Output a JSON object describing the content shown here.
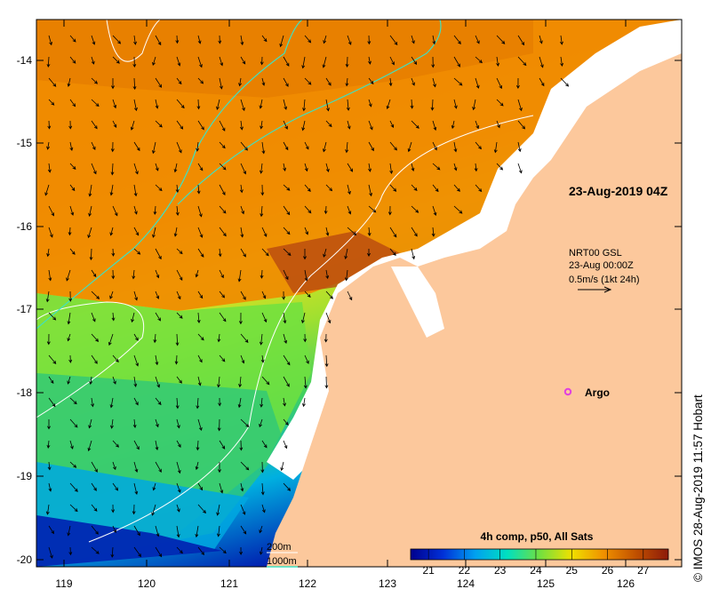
{
  "map": {
    "timestamp_label": "23-Aug-2019 04Z",
    "current_legend": {
      "source": "NRT00 GSL",
      "time": "23-Aug 00:00Z",
      "scale": "0.5m/s (1kt 24h)"
    },
    "argo_label": "Argo",
    "argo_marker_color": "#e040e0",
    "isobaths": [
      {
        "label": "200m",
        "color": "#ffffff"
      },
      {
        "label": "1000m",
        "color": "#40e0c0"
      }
    ],
    "land_color": "#fcc89c",
    "no_data_color": "#ffffff",
    "lat_ticks": [
      "-14",
      "-15",
      "-16",
      "-17",
      "-18",
      "-19",
      "-20"
    ],
    "lon_ticks": [
      "119",
      "120",
      "121",
      "122",
      "123",
      "124",
      "125",
      "126"
    ],
    "colorbar": {
      "title": "4h comp, p50, All Sats",
      "ticks": [
        "21",
        "22",
        "23",
        "24",
        "25",
        "26",
        "27"
      ],
      "range": [
        20.5,
        27.7
      ],
      "colors": [
        "#00008c",
        "#0030d8",
        "#00a0f0",
        "#00e0c0",
        "#70e040",
        "#f0e000",
        "#f09000",
        "#c05000",
        "#8c1a0a"
      ]
    }
  },
  "credit": "© IMOS 28-Aug-2019 11:57 Hobart"
}
